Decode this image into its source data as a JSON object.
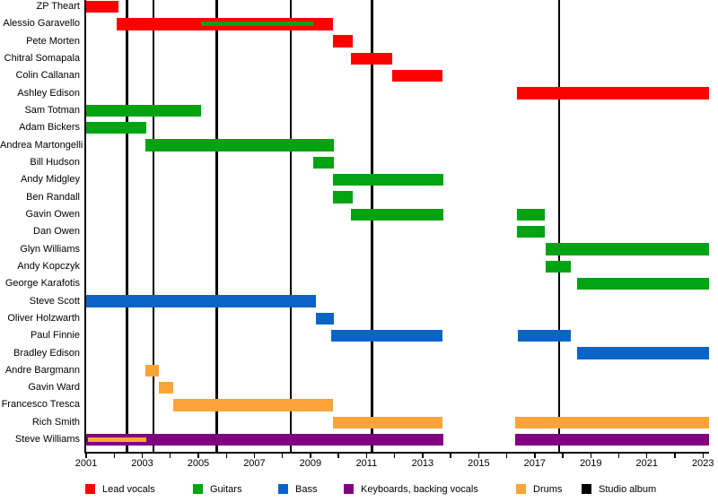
{
  "chart_data": {
    "type": "bar",
    "subtype": "band-member-timeline-gantt",
    "title": "",
    "xlabel": "",
    "ylabel": "",
    "x_axis": {
      "min": 2001,
      "max": 2023.2,
      "tick_years": [
        2001,
        2002,
        2003,
        2004,
        2005,
        2006,
        2007,
        2008,
        2009,
        2010,
        2011,
        2012,
        2013,
        2014,
        2015,
        2016,
        2017,
        2018,
        2019,
        2020,
        2021,
        2022,
        2023
      ],
      "label_years": [
        2001,
        2003,
        2005,
        2007,
        2009,
        2011,
        2013,
        2015,
        2017,
        2019,
        2021,
        2023
      ],
      "grid": "off"
    },
    "colors": {
      "red": "#ff0000",
      "green": "#00a312",
      "blue": "#0a64c8",
      "purple": "#800080",
      "orange": "#faa43a",
      "black": "#000000"
    },
    "legend": {
      "position": "bottom",
      "items": [
        {
          "label": "Lead vocals",
          "color": "red"
        },
        {
          "label": "Guitars",
          "color": "green"
        },
        {
          "label": "Bass",
          "color": "blue"
        },
        {
          "label": "Keyboards, backing vocals",
          "color": "purple"
        },
        {
          "label": "Drums",
          "color": "orange"
        },
        {
          "label": "Studio album",
          "color": "black"
        }
      ]
    },
    "albums": {
      "legend_label": "Studio album",
      "count": 6,
      "years": [
        2002.45,
        2003.4,
        2005.65,
        2008.3,
        2011.2,
        2017.87
      ]
    },
    "members": [
      {
        "name": "ZP Theart",
        "color": "red",
        "periods": [
          [
            2001.0,
            2002.15
          ]
        ]
      },
      {
        "name": "Alessio Garavello",
        "color": "red",
        "periods": [
          [
            2002.1,
            2009.8
          ]
        ],
        "overlay": {
          "color": "green",
          "periods": [
            [
              2005.1,
              2009.1
            ]
          ]
        }
      },
      {
        "name": "Pete Morten",
        "color": "red",
        "periods": [
          [
            2009.8,
            2010.5
          ]
        ]
      },
      {
        "name": "Chitral Somapala",
        "color": "red",
        "periods": [
          [
            2010.45,
            2011.9
          ]
        ]
      },
      {
        "name": "Colin Callanan",
        "color": "red",
        "periods": [
          [
            2011.9,
            2013.7
          ]
        ]
      },
      {
        "name": "Ashley Edison",
        "color": "red",
        "periods": [
          [
            2016.35,
            2023.2
          ]
        ]
      },
      {
        "name": "Sam Totman",
        "color": "green",
        "periods": [
          [
            2001.0,
            2005.1
          ]
        ]
      },
      {
        "name": "Adam Bickers",
        "color": "green",
        "periods": [
          [
            2001.0,
            2003.15
          ]
        ]
      },
      {
        "name": "Andrea Martongelli",
        "color": "green",
        "periods": [
          [
            2003.1,
            2009.85
          ]
        ]
      },
      {
        "name": "Bill Hudson",
        "color": "green",
        "periods": [
          [
            2009.1,
            2009.85
          ]
        ]
      },
      {
        "name": "Andy Midgley",
        "color": "green",
        "periods": [
          [
            2009.8,
            2013.75
          ]
        ]
      },
      {
        "name": "Ben Randall",
        "color": "green",
        "periods": [
          [
            2009.8,
            2010.5
          ]
        ]
      },
      {
        "name": "Gavin Owen",
        "color": "green",
        "periods": [
          [
            2010.45,
            2013.75
          ],
          [
            2016.35,
            2017.35
          ]
        ]
      },
      {
        "name": "Dan Owen",
        "color": "green",
        "periods": [
          [
            2016.35,
            2017.35
          ]
        ]
      },
      {
        "name": "Glyn Williams",
        "color": "green",
        "periods": [
          [
            2017.4,
            2023.2
          ]
        ]
      },
      {
        "name": "Andy Kopczyk",
        "color": "green",
        "periods": [
          [
            2017.4,
            2018.3
          ]
        ]
      },
      {
        "name": "George Karafotis",
        "color": "green",
        "periods": [
          [
            2018.5,
            2023.2
          ]
        ]
      },
      {
        "name": "Steve Scott",
        "color": "blue",
        "periods": [
          [
            2001.0,
            2009.2
          ]
        ]
      },
      {
        "name": "Oliver Holzwarth",
        "color": "blue",
        "periods": [
          [
            2009.2,
            2009.85
          ]
        ]
      },
      {
        "name": "Paul Finnie",
        "color": "blue",
        "periods": [
          [
            2009.75,
            2013.7
          ],
          [
            2016.4,
            2018.3
          ]
        ]
      },
      {
        "name": "Bradley Edison",
        "color": "blue",
        "periods": [
          [
            2018.5,
            2023.2
          ]
        ]
      },
      {
        "name": "Andre Bargmann",
        "color": "orange",
        "periods": [
          [
            2003.1,
            2003.6
          ]
        ]
      },
      {
        "name": "Gavin Ward",
        "color": "orange",
        "periods": [
          [
            2003.6,
            2004.1
          ]
        ]
      },
      {
        "name": "Francesco Tresca",
        "color": "orange",
        "periods": [
          [
            2004.1,
            2009.8
          ]
        ]
      },
      {
        "name": "Rich Smith",
        "color": "orange",
        "periods": [
          [
            2009.8,
            2013.7
          ],
          [
            2016.3,
            2023.2
          ]
        ]
      },
      {
        "name": "Steve Williams",
        "color": "purple",
        "periods": [
          [
            2001.0,
            2013.75
          ],
          [
            2016.3,
            2023.2
          ]
        ],
        "overlay": {
          "color": "orange",
          "periods": [
            [
              2001.05,
              2003.15
            ]
          ]
        }
      }
    ]
  }
}
